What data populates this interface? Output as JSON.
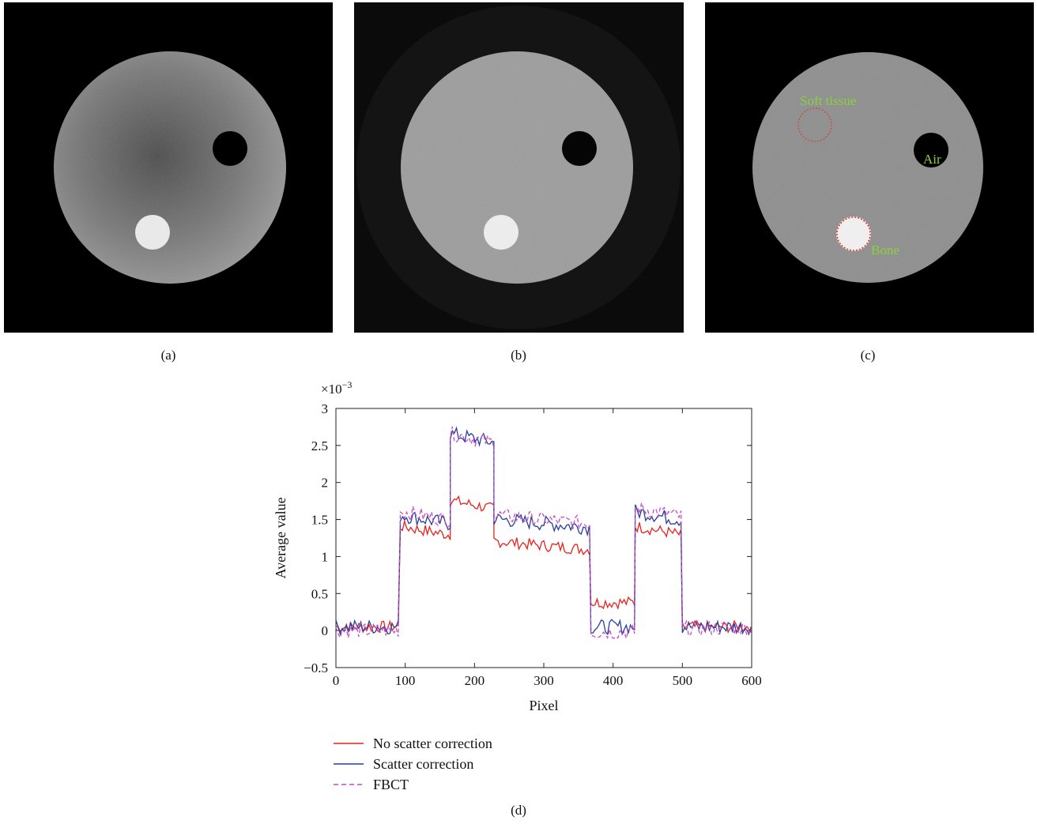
{
  "panels": [
    {
      "id": "a",
      "caption": "(a)"
    },
    {
      "id": "b",
      "caption": "(b)"
    },
    {
      "id": "c",
      "caption": "(c)",
      "labels": {
        "soft_tissue": "Soft tissue",
        "air": "Air",
        "bone": "Bone"
      }
    }
  ],
  "colors": {
    "no_scatter": "#e8221c",
    "scatter": "#2a3f9a",
    "fbct": "#c24cc4",
    "annotation": "#8ad13a",
    "roi": "#e0302c"
  },
  "chart_data": {
    "type": "line",
    "caption": "(d)",
    "xlabel": "Pixel",
    "ylabel": "Average value",
    "y_multiplier": "×10",
    "y_multiplier_exp": "−3",
    "xlim": [
      0,
      600
    ],
    "ylim": [
      -0.5,
      3
    ],
    "xticks": [
      "0",
      "100",
      "200",
      "300",
      "400",
      "500",
      "600"
    ],
    "yticks": [
      "−0.5",
      "0",
      "0.5",
      "1",
      "1.5",
      "2",
      "2.5",
      "3"
    ],
    "legend_placement": "below",
    "series": [
      {
        "name": "No scatter correction",
        "style": "solid",
        "color": "#e8221c",
        "segments": [
          [
            0,
            90,
            0.05
          ],
          [
            93,
            165,
            1.35
          ],
          [
            165,
            228,
            1.7
          ],
          [
            228,
            368,
            1.15
          ],
          [
            368,
            432,
            0.38
          ],
          [
            432,
            500,
            1.35
          ],
          [
            500,
            600,
            0.05
          ]
        ]
      },
      {
        "name": "Scatter correction",
        "style": "solid",
        "color": "#2a3f9a",
        "segments": [
          [
            0,
            90,
            0.05
          ],
          [
            93,
            165,
            1.5
          ],
          [
            165,
            228,
            2.6
          ],
          [
            228,
            368,
            1.45
          ],
          [
            368,
            432,
            0.05
          ],
          [
            432,
            500,
            1.55
          ],
          [
            500,
            600,
            0.05
          ]
        ]
      },
      {
        "name": "FBCT",
        "style": "dashed",
        "color": "#c24cc4",
        "segments": [
          [
            0,
            90,
            0.0
          ],
          [
            93,
            165,
            1.55
          ],
          [
            165,
            228,
            2.6
          ],
          [
            228,
            368,
            1.5
          ],
          [
            368,
            432,
            -0.02
          ],
          [
            432,
            500,
            1.6
          ],
          [
            500,
            600,
            0.03
          ]
        ]
      }
    ]
  }
}
